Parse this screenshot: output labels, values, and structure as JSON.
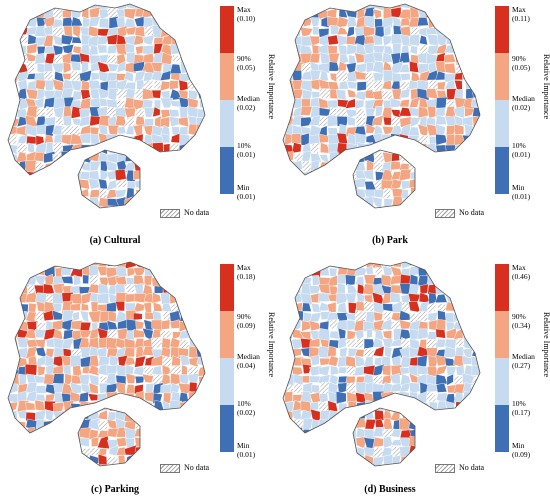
{
  "colors": {
    "max": "#d7301f",
    "p90": "#f4a582",
    "p10": "#c6dbef",
    "min": "#3f6fb5",
    "nodata_hatch": "#9a9a9a"
  },
  "legend_common": {
    "axis_title": "Relative Importance",
    "nodata_label": "No data",
    "labels": [
      "Max",
      "90%",
      "Median",
      "10%",
      "Min"
    ]
  },
  "panels": [
    {
      "caption": "(a) Cultural",
      "values": [
        "(0.10)",
        "(0.05)",
        "(0.02)",
        "(0.01)",
        "(0.01)"
      ]
    },
    {
      "caption": "(b) Park",
      "values": [
        "(0.11)",
        "(0.05)",
        "(0.02)",
        "(0.01)",
        "(0.01)"
      ]
    },
    {
      "caption": "(c) Parking",
      "values": [
        "(0.18)",
        "(0.09)",
        "(0.04)",
        "(0.02)",
        "(0.01)"
      ]
    },
    {
      "caption": "(d) Business",
      "values": [
        "(0.46)",
        "(0.34)",
        "(0.27)",
        "(0.17)",
        "(0.09)"
      ]
    }
  ]
}
